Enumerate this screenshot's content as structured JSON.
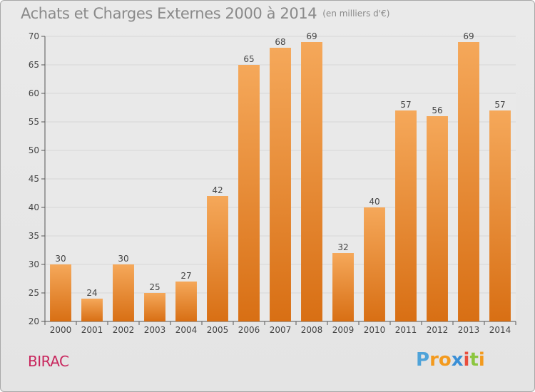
{
  "title": "Achats et Charges Externes 2000 à 2014",
  "subtitle": "(en milliers d'€)",
  "commune": "BIRAC",
  "logo": {
    "letters": [
      "P",
      "r",
      "o",
      "x",
      "i",
      "t",
      "i"
    ],
    "colors": [
      "#4fa3d9",
      "#f39a1e",
      "#f39a1e",
      "#3a8fd6",
      "#e94e3d",
      "#8cc63f",
      "#f39a1e"
    ]
  },
  "colors": {
    "bar_light": "#f5a85a",
    "bar_dark": "#d86f14",
    "title": "#8a8a8a",
    "commune": "#c8255c",
    "grid": "#d8d8d8"
  },
  "chart_data": {
    "type": "bar",
    "title": "Achats et Charges Externes 2000 à 2014",
    "subtitle": "(en milliers d'€)",
    "categories": [
      "2000",
      "2001",
      "2002",
      "2003",
      "2004",
      "2005",
      "2006",
      "2007",
      "2008",
      "2009",
      "2010",
      "2011",
      "2012",
      "2013",
      "2014"
    ],
    "values": [
      30,
      24,
      30,
      25,
      27,
      42,
      65,
      68,
      69,
      32,
      40,
      57,
      56,
      69,
      57
    ],
    "ylim": [
      20,
      70
    ],
    "yticks": [
      20,
      25,
      30,
      35,
      40,
      45,
      50,
      55,
      60,
      65,
      70
    ],
    "xlabel": "",
    "ylabel": "",
    "grid": true,
    "legend": "none"
  }
}
